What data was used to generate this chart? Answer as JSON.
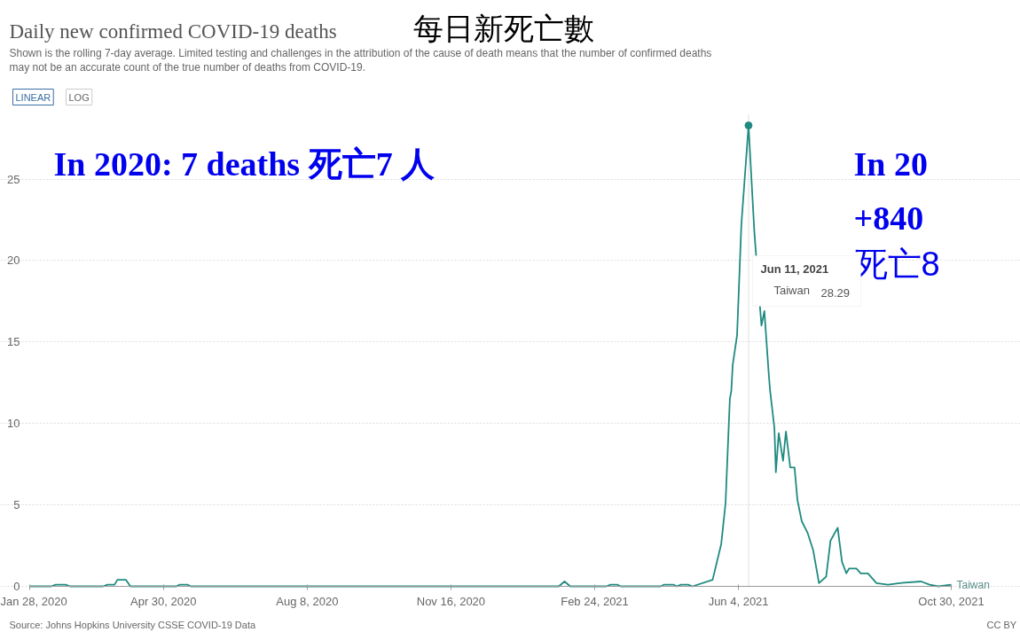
{
  "chart_data": {
    "type": "line",
    "title": "Daily new confirmed COVID-19 deaths",
    "subtitle": "Shown is the rolling 7-day average. Limited testing and challenges in the attribution of the cause of death means that the number of confirmed deaths may not be an accurate count of the true number of deaths from COVID-19.",
    "x": [
      "2020-01-28",
      "2020-02-12",
      "2020-02-15",
      "2020-02-22",
      "2020-02-25",
      "2020-03-19",
      "2020-03-22",
      "2020-03-27",
      "2020-03-29",
      "2020-04-04",
      "2020-04-07",
      "2020-04-12",
      "2020-05-09",
      "2020-05-11",
      "2020-05-17",
      "2020-05-19",
      "2021-01-30",
      "2021-02-03",
      "2021-02-07",
      "2021-03-04",
      "2021-03-07",
      "2021-03-12",
      "2021-03-14",
      "2021-04-11",
      "2021-04-13",
      "2021-04-20",
      "2021-04-22",
      "2021-04-25",
      "2021-04-30",
      "2021-05-03",
      "2021-05-17",
      "2021-05-23",
      "2021-05-26",
      "2021-05-29",
      "2021-05-30",
      "2021-05-31",
      "2021-06-03",
      "2021-06-06",
      "2021-06-11",
      "2021-06-15",
      "2021-06-19",
      "2021-06-20",
      "2021-06-22",
      "2021-06-25",
      "2021-06-26",
      "2021-06-29",
      "2021-06-30",
      "2021-07-02",
      "2021-07-05",
      "2021-07-07",
      "2021-07-10",
      "2021-07-13",
      "2021-07-15",
      "2021-07-18",
      "2021-07-22",
      "2021-07-26",
      "2021-07-30",
      "2021-08-04",
      "2021-08-07",
      "2021-08-12",
      "2021-08-15",
      "2021-08-18",
      "2021-08-20",
      "2021-08-25",
      "2021-08-28",
      "2021-09-02",
      "2021-09-08",
      "2021-09-16",
      "2021-09-24",
      "2021-10-09",
      "2021-10-15",
      "2021-10-21",
      "2021-10-30"
    ],
    "series": [
      {
        "name": "Taiwan",
        "color": "#1f8a80",
        "values": [
          0,
          0,
          0.1,
          0.1,
          0,
          0,
          0.1,
          0.1,
          0.4,
          0.4,
          0,
          0,
          0,
          0.1,
          0.1,
          0,
          0,
          0.3,
          0,
          0,
          0.1,
          0.1,
          0,
          0,
          0.1,
          0.1,
          0,
          0.1,
          0.1,
          0,
          0.4,
          2.6,
          5.1,
          11.5,
          12,
          13.6,
          15.4,
          22.2,
          28.29,
          21.8,
          17.1,
          16,
          16.9,
          13.1,
          12,
          9.7,
          7,
          9.4,
          7.7,
          9.5,
          7.3,
          7.3,
          5.3,
          4,
          3.3,
          2.2,
          0.2,
          0.6,
          2.8,
          3.6,
          1.5,
          0.8,
          1.1,
          1.1,
          0.8,
          0.8,
          0.2,
          0.1,
          0.2,
          0.3,
          0.1,
          0,
          0.1
        ]
      }
    ],
    "xlim": [
      "2020-01-28",
      "2021-10-30"
    ],
    "xticks": [
      {
        "value": "2020-01-28",
        "label": "Jan 28, 2020"
      },
      {
        "value": "2020-04-30",
        "label": "Apr 30, 2020"
      },
      {
        "value": "2020-08-08",
        "label": "Aug 8, 2020"
      },
      {
        "value": "2020-11-16",
        "label": "Nov 16, 2020"
      },
      {
        "value": "2021-02-24",
        "label": "Feb 24, 2021"
      },
      {
        "value": "2021-06-04",
        "label": "Jun 4, 2021"
      },
      {
        "value": "2021-10-30",
        "label": "Oct 30, 2021"
      }
    ],
    "ylim": [
      0,
      29
    ],
    "yticks": [
      0,
      5,
      10,
      15,
      20,
      25
    ],
    "grid": "y",
    "marker": "none",
    "line_style": "solid",
    "ref_lines": [
      {
        "axis": "x",
        "value": "2021-06-11",
        "label": null,
        "color": "#e0e0e0"
      }
    ],
    "annotations": [
      "每日新死亡數",
      "In 2020:  7 deaths  死亡7 人",
      "In 20",
      "+840",
      "死亡8",
      "LINEAR",
      "LOG",
      "Jun 11, 2021",
      "28.29",
      "Source: Johns Hopkins University CSSE COVID-19 Data",
      "CC BY"
    ]
  }
}
